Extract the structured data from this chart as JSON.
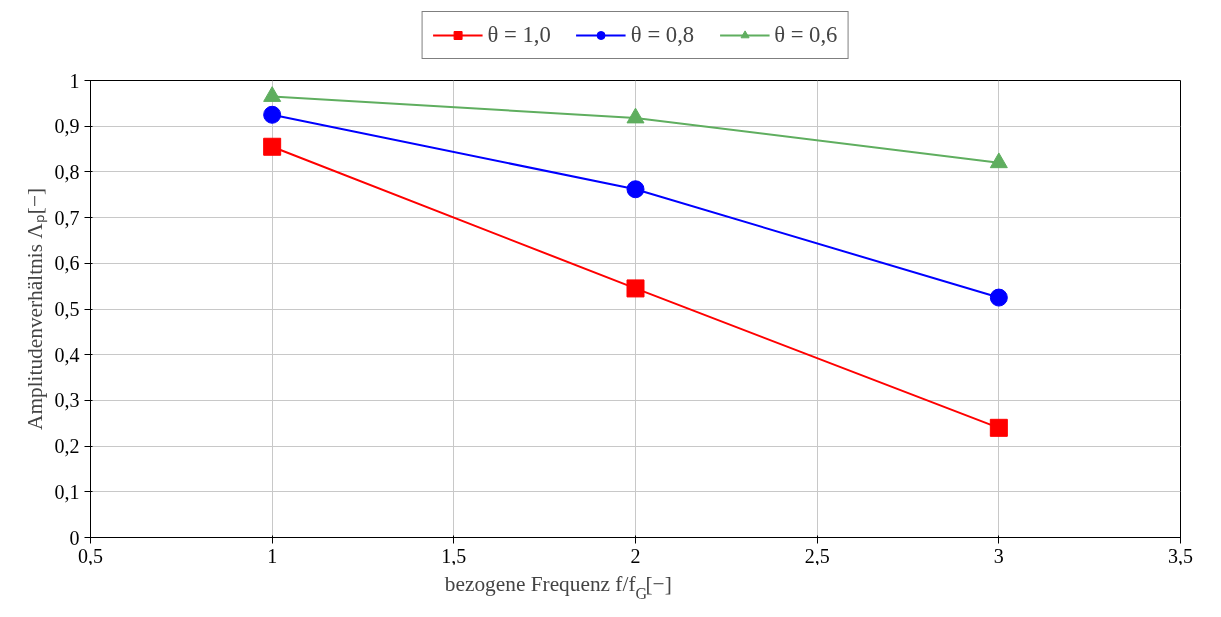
{
  "chart_data": {
    "type": "line",
    "xlabel": "bezogene Frequenz f/f$_{G}$[−]",
    "ylabel": "Amplitudenverhältnis Λₚ[−]",
    "x": [
      1,
      2,
      3
    ],
    "series": [
      {
        "name": "θ = 1,0",
        "color": "#ff0000",
        "marker": "square",
        "values": [
          0.855,
          0.545,
          0.24
        ]
      },
      {
        "name": "θ = 0,8",
        "color": "#0000ff",
        "marker": "circle",
        "values": [
          0.925,
          0.762,
          0.525
        ]
      },
      {
        "name": "θ = 0,6",
        "color": "#5fae5f",
        "marker": "triangle",
        "values": [
          0.965,
          0.918,
          0.82
        ]
      }
    ],
    "xlim": [
      0.5,
      3.5
    ],
    "ylim": [
      0,
      1
    ],
    "xticks": [
      {
        "value": 0.5,
        "label": "0,5"
      },
      1,
      {
        "value": 1.5,
        "label": "1,5"
      },
      2,
      {
        "value": 2.5,
        "label": "2,5"
      },
      3,
      {
        "value": 3.5,
        "label": "3,5"
      }
    ],
    "yticks": [
      0,
      {
        "value": 0.1,
        "label": "0,1"
      },
      {
        "value": 0.2,
        "label": "0,2"
      },
      {
        "value": 0.3,
        "label": "0,3"
      },
      {
        "value": 0.4,
        "label": "0,4"
      },
      {
        "value": 0.5,
        "label": "0,5"
      },
      {
        "value": 0.6,
        "label": "0,6"
      },
      {
        "value": 0.7,
        "label": "0,7"
      },
      {
        "value": 0.8,
        "label": "0,8"
      },
      {
        "value": 0.9,
        "label": "0,9"
      },
      1
    ],
    "grid": true,
    "legend": "top",
    "line_style": "solid"
  }
}
